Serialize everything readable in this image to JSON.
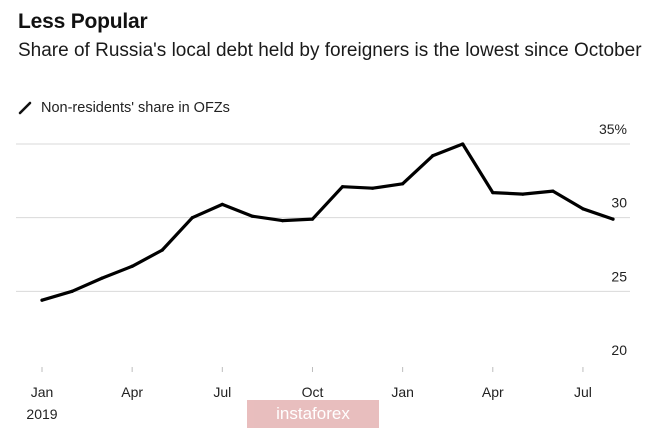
{
  "chart_data": {
    "type": "line",
    "title": "Less Popular",
    "subtitle": "Share of Russia's local debt held by foreigners is the lowest since October",
    "xlabel": "",
    "ylabel": "",
    "x": [
      "2019-01",
      "2019-02",
      "2019-03",
      "2019-04",
      "2019-05",
      "2019-06",
      "2019-07",
      "2019-08",
      "2019-09",
      "2019-10",
      "2019-11",
      "2019-12",
      "2020-01",
      "2020-02",
      "2020-03",
      "2020-04",
      "2020-05",
      "2020-06",
      "2020-07",
      "2020-08"
    ],
    "series": [
      {
        "name": "Non-residents' share in OFZs",
        "color": "#000000",
        "values": [
          24.4,
          25.0,
          25.9,
          26.7,
          27.8,
          30.0,
          30.9,
          30.1,
          29.8,
          29.9,
          32.1,
          32.0,
          32.3,
          34.2,
          35.0,
          31.7,
          31.6,
          31.8,
          30.6,
          29.9
        ]
      }
    ],
    "xticks": [
      {
        "x": "2019-01",
        "label": "Jan"
      },
      {
        "x": "2019-04",
        "label": "Apr"
      },
      {
        "x": "2019-07",
        "label": "Jul"
      },
      {
        "x": "2019-10",
        "label": "Oct"
      },
      {
        "x": "2020-01",
        "label": "Jan"
      },
      {
        "x": "2020-04",
        "label": "Apr"
      },
      {
        "x": "2020-07",
        "label": "Jul"
      }
    ],
    "year_label": "2019",
    "yticks": [
      {
        "value": 20,
        "label": "20"
      },
      {
        "value": 25,
        "label": "25"
      },
      {
        "value": 30,
        "label": "30"
      },
      {
        "value": 35,
        "label": "35%"
      }
    ],
    "ylim": [
      20,
      35
    ],
    "grid": true,
    "legend_position": "top-left",
    "line_color": "#000000",
    "grid_color": "#d9d9d9"
  },
  "watermark": {
    "text": "instaforex"
  }
}
